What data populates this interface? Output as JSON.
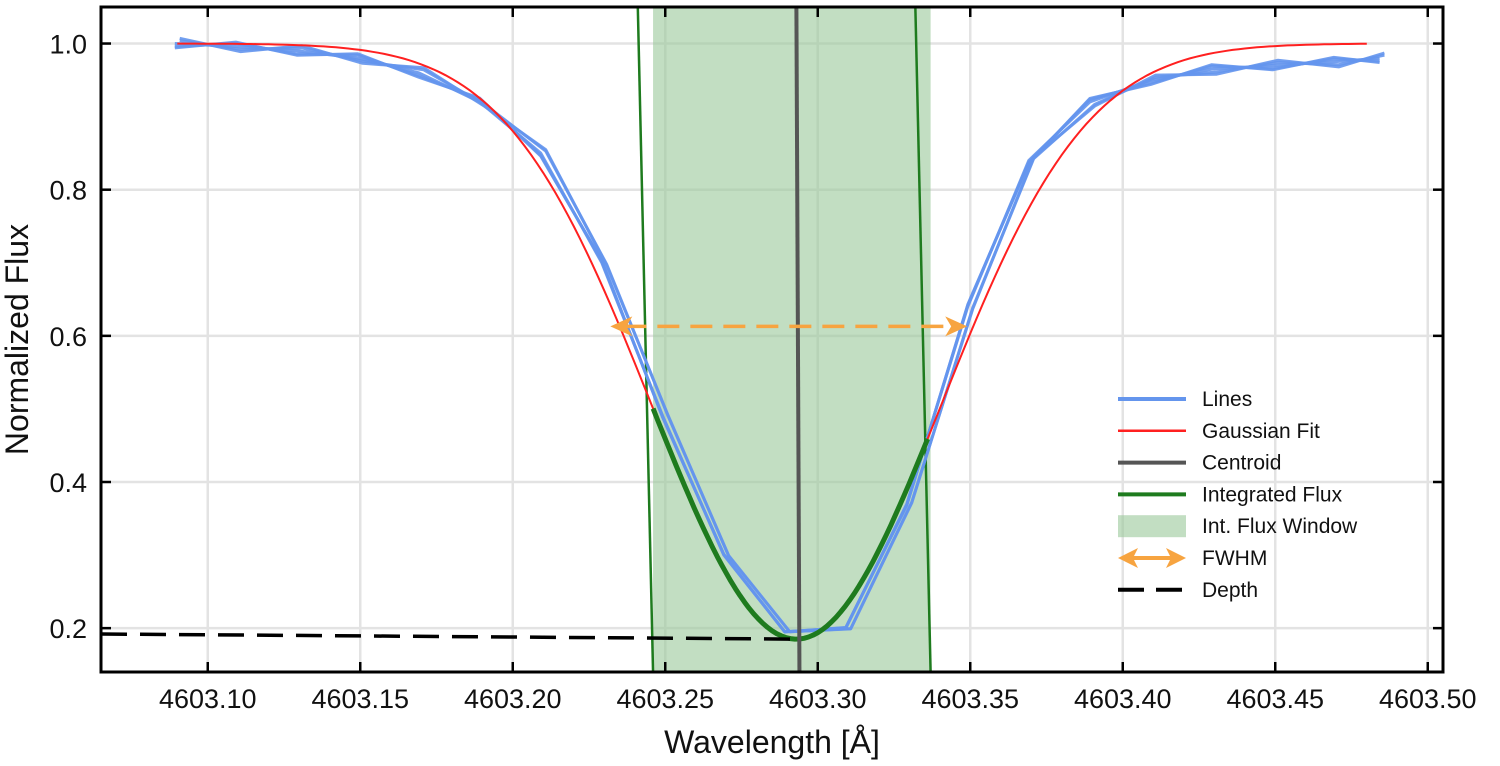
{
  "chart_data": {
    "type": "line",
    "xlabel": "Wavelength [Å]",
    "ylabel": "Normalized Flux",
    "xlim": [
      4603.065,
      4603.505
    ],
    "ylim": [
      0.14,
      1.05
    ],
    "x_ticks": [
      4603.1,
      4603.15,
      4603.2,
      4603.25,
      4603.3,
      4603.35,
      4603.4,
      4603.45,
      4603.5
    ],
    "x_tick_labels": [
      "4603.10",
      "4603.15",
      "4603.20",
      "4603.25",
      "4603.30",
      "4603.35",
      "4603.40",
      "4603.45",
      "4603.50"
    ],
    "y_ticks": [
      0.2,
      0.4,
      0.6,
      0.8,
      1.0
    ],
    "y_tick_labels": [
      "0.2",
      "0.4",
      "0.6",
      "0.8",
      "1.0"
    ],
    "grid": true,
    "legend_position": "lower-right",
    "colors": {
      "lines": "#6495ED",
      "gaussian_fit": "#FF2020",
      "centroid": "#555555",
      "integrated_flux": "#1E7B1E",
      "window_fill": "#9CC99C",
      "fwhm": "#F7A440",
      "depth": "#000000"
    },
    "gaussian_fit": {
      "continuum": 1.0,
      "center": 4603.293,
      "depth": 0.815,
      "sigma": 0.0475,
      "x_range": [
        4603.09,
        4603.48
      ]
    },
    "lines": {
      "x": [
        4603.09,
        4603.11,
        4603.13,
        4603.15,
        4603.17,
        4603.19,
        4603.21,
        4603.23,
        4603.25,
        4603.27,
        4603.29,
        4603.31,
        4603.33,
        4603.35,
        4603.37,
        4603.39,
        4603.41,
        4603.43,
        4603.45,
        4603.47,
        4603.485
      ],
      "y": [
        1.0,
        0.996,
        0.99,
        0.98,
        0.96,
        0.92,
        0.85,
        0.7,
        0.49,
        0.3,
        0.195,
        0.2,
        0.37,
        0.64,
        0.84,
        0.92,
        0.95,
        0.965,
        0.97,
        0.975,
        0.98
      ]
    },
    "centroid": {
      "x": [
        4603.293,
        4603.294
      ],
      "y": [
        1.05,
        0.14
      ]
    },
    "integrated_flux_window": {
      "x_min": 4603.246,
      "x_max": 4603.337
    },
    "fwhm": {
      "x_start": 4603.232,
      "x_end": 4603.349,
      "y": 0.613
    },
    "depth": {
      "x_start": 4603.065,
      "x_end": 4603.293,
      "y_start": 0.192,
      "y_end": 0.185
    },
    "legend": [
      "Lines",
      "Gaussian Fit",
      "Centroid",
      "Integrated Flux",
      "Int. Flux Window",
      "FWHM",
      "Depth"
    ]
  }
}
